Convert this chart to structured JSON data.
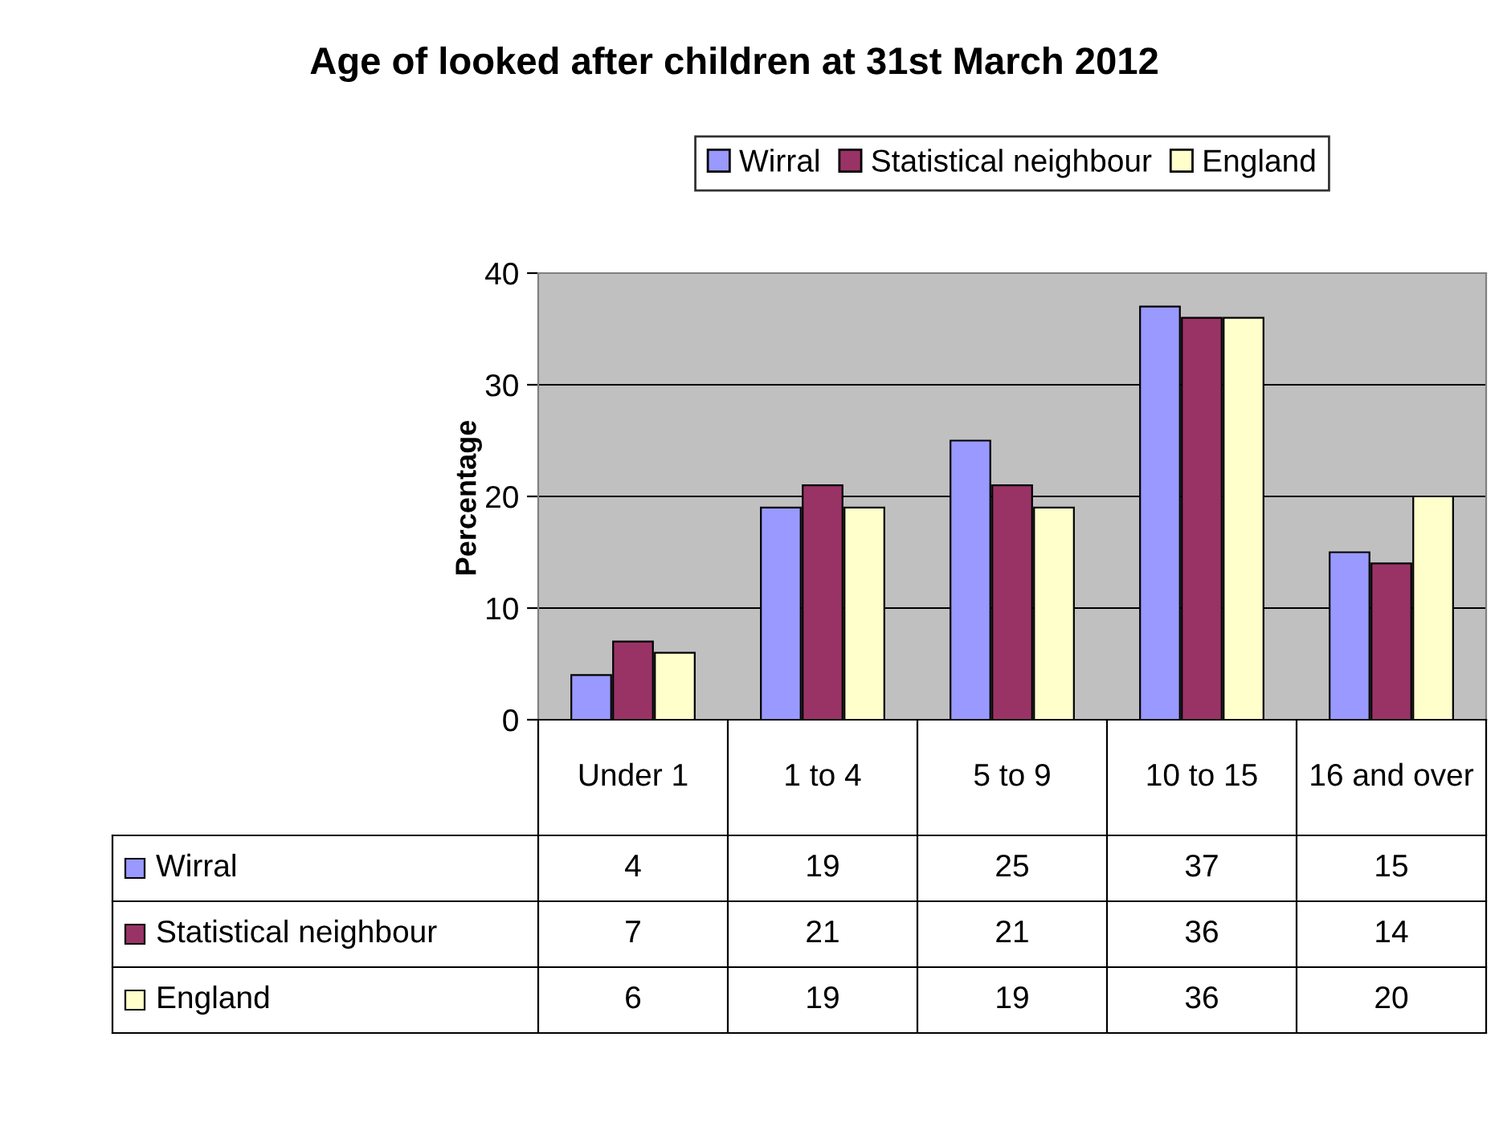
{
  "chart_data": {
    "type": "bar",
    "title": "Age of looked after children at 31st March 2012",
    "ylabel": "Percentage",
    "categories": [
      "Under 1",
      "1 to 4",
      "5 to 9",
      "10 to 15",
      "16 and over"
    ],
    "series": [
      {
        "name": "Wirral",
        "color": "#9999ff",
        "values": [
          4,
          19,
          25,
          37,
          15
        ]
      },
      {
        "name": "Statistical neighbour",
        "color": "#993366",
        "values": [
          7,
          21,
          21,
          36,
          14
        ]
      },
      {
        "name": "England",
        "color": "#ffffcc",
        "values": [
          6,
          19,
          19,
          36,
          20
        ]
      }
    ],
    "ylim": [
      0,
      40
    ],
    "yticks": [
      0,
      10,
      20,
      30,
      40
    ],
    "grid": "y",
    "legend": "top",
    "data_labels": true
  }
}
